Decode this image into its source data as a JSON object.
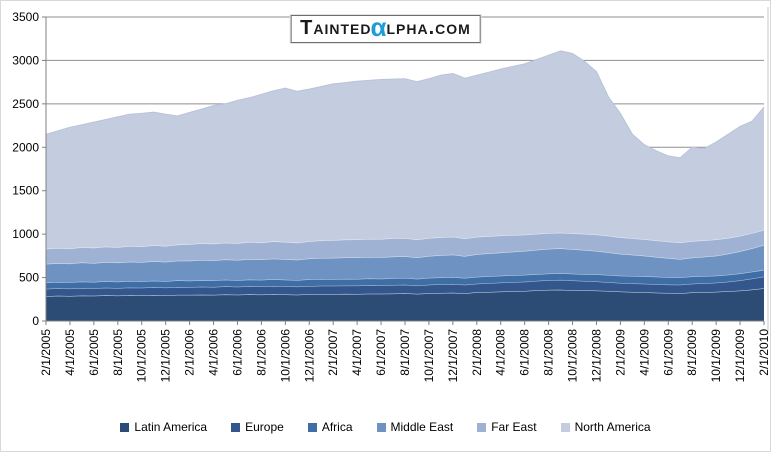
{
  "watermark": {
    "prefix": "Tainted",
    "alpha": "α",
    "suffix": "lpha.com",
    "alpha_color": "#1f9cd8"
  },
  "colors": {
    "gridline": "#8f8f8f",
    "axis_line": "#808080",
    "plot_right_border": "#c9c9c9",
    "background": "#ffffff"
  },
  "chart_data": {
    "type": "area",
    "stacked": true,
    "title": "",
    "xlabel": "",
    "ylabel": "",
    "ylim": [
      0,
      3500
    ],
    "y_tick_step": 500,
    "grid": true,
    "legend_position": "bottom",
    "x_tick_every": 2,
    "x": [
      "2/1/2005",
      "3/1/2005",
      "4/1/2005",
      "5/1/2005",
      "6/1/2005",
      "7/1/2005",
      "8/1/2005",
      "9/1/2005",
      "10/1/2005",
      "11/1/2005",
      "12/1/2005",
      "1/1/2006",
      "2/1/2006",
      "3/1/2006",
      "4/1/2006",
      "5/1/2006",
      "6/1/2006",
      "7/1/2006",
      "8/1/2006",
      "9/1/2006",
      "10/1/2006",
      "11/1/2006",
      "12/1/2006",
      "1/1/2007",
      "2/1/2007",
      "3/1/2007",
      "4/1/2007",
      "5/1/2007",
      "6/1/2007",
      "7/1/2007",
      "8/1/2007",
      "9/1/2007",
      "10/1/2007",
      "11/1/2007",
      "12/1/2007",
      "1/1/2008",
      "2/1/2008",
      "3/1/2008",
      "4/1/2008",
      "5/1/2008",
      "6/1/2008",
      "7/1/2008",
      "8/1/2008",
      "9/1/2008",
      "10/1/2008",
      "11/1/2008",
      "12/1/2008",
      "1/1/2009",
      "2/1/2009",
      "3/1/2009",
      "4/1/2009",
      "5/1/2009",
      "6/1/2009",
      "7/1/2009",
      "8/1/2009",
      "9/1/2009",
      "10/1/2009",
      "11/1/2009",
      "12/1/2009",
      "1/1/2010",
      "2/1/2010"
    ],
    "series": [
      {
        "name": "Latin America",
        "color": "#2c4b75",
        "edge": "#d9e1ed",
        "values": [
          285,
          290,
          288,
          293,
          290,
          295,
          292,
          296,
          294,
          298,
          295,
          300,
          300,
          303,
          301,
          305,
          302,
          306,
          304,
          308,
          305,
          303,
          307,
          309,
          310,
          312,
          311,
          314,
          313,
          316,
          320,
          312,
          318,
          322,
          325,
          318,
          330,
          334,
          338,
          342,
          345,
          352,
          358,
          360,
          355,
          352,
          350,
          345,
          338,
          334,
          330,
          326,
          322,
          320,
          328,
          332,
          335,
          342,
          350,
          362,
          377
        ]
      },
      {
        "name": "Europe",
        "color": "#33568c",
        "edge": "#bccadf",
        "values": [
          85,
          86,
          85,
          87,
          86,
          88,
          87,
          89,
          88,
          90,
          89,
          91,
          90,
          92,
          91,
          93,
          92,
          94,
          93,
          95,
          94,
          93,
          95,
          96,
          95,
          96,
          96,
          97,
          97,
          98,
          98,
          96,
          99,
          100,
          101,
          99,
          100,
          102,
          104,
          106,
          108,
          110,
          112,
          113,
          111,
          108,
          105,
          102,
          100,
          99,
          98,
          97,
          97,
          97,
          100,
          102,
          105,
          110,
          118,
          126,
          134
        ]
      },
      {
        "name": "Africa",
        "color": "#3f6da6",
        "edge": "#c6d5e9",
        "values": [
          72,
          73,
          72,
          74,
          73,
          74,
          73,
          75,
          74,
          75,
          74,
          76,
          74,
          75,
          75,
          76,
          75,
          77,
          76,
          77,
          76,
          75,
          77,
          78,
          76,
          77,
          77,
          78,
          77,
          78,
          78,
          77,
          79,
          79,
          80,
          78,
          78,
          79,
          80,
          79,
          78,
          77,
          76,
          76,
          77,
          79,
          81,
          83,
          84,
          85,
          85,
          86,
          85,
          85,
          84,
          83,
          82,
          80,
          79,
          78,
          77
        ]
      },
      {
        "name": "Middle East",
        "color": "#6e93c2",
        "edge": "#dfe7f2",
        "values": [
          215,
          217,
          216,
          219,
          218,
          221,
          220,
          223,
          222,
          225,
          223,
          227,
          230,
          232,
          231,
          234,
          233,
          236,
          235,
          238,
          237,
          235,
          240,
          242,
          245,
          246,
          247,
          248,
          248,
          250,
          250,
          246,
          252,
          255,
          258,
          252,
          260,
          263,
          266,
          270,
          275,
          280,
          284,
          287,
          283,
          278,
          270,
          260,
          250,
          244,
          238,
          228,
          220,
          211,
          218,
          222,
          230,
          242,
          255,
          270,
          288
        ]
      },
      {
        "name": "Far East",
        "color": "#9fb2d3",
        "edge": "#ebeff6",
        "values": [
          173,
          175,
          174,
          177,
          176,
          179,
          178,
          181,
          180,
          183,
          182,
          186,
          190,
          192,
          191,
          194,
          193,
          196,
          195,
          198,
          197,
          195,
          200,
          202,
          205,
          206,
          207,
          208,
          209,
          210,
          210,
          206,
          208,
          207,
          206,
          203,
          200,
          198,
          196,
          192,
          188,
          184,
          182,
          181,
          183,
          186,
          189,
          192,
          191,
          190,
          190,
          190,
          190,
          191,
          190,
          189,
          186,
          182,
          178,
          175,
          172
        ]
      },
      {
        "name": "North America",
        "color": "#c4cde0",
        "edge": "#b9c3d9",
        "values": [
          1320,
          1349,
          1395,
          1410,
          1447,
          1463,
          1500,
          1516,
          1532,
          1534,
          1517,
          1480,
          1516,
          1546,
          1591,
          1598,
          1645,
          1661,
          1707,
          1734,
          1771,
          1744,
          1751,
          1773,
          1799,
          1808,
          1822,
          1825,
          1836,
          1833,
          1834,
          1818,
          1834,
          1867,
          1880,
          1845,
          1862,
          1889,
          1916,
          1941,
          1966,
          2007,
          2048,
          2093,
          2071,
          1987,
          1875,
          1598,
          1427,
          1198,
          1089,
          1033,
          986,
          976,
          1080,
          1057,
          1122,
          1194,
          1260,
          1289,
          1415
        ]
      }
    ]
  }
}
